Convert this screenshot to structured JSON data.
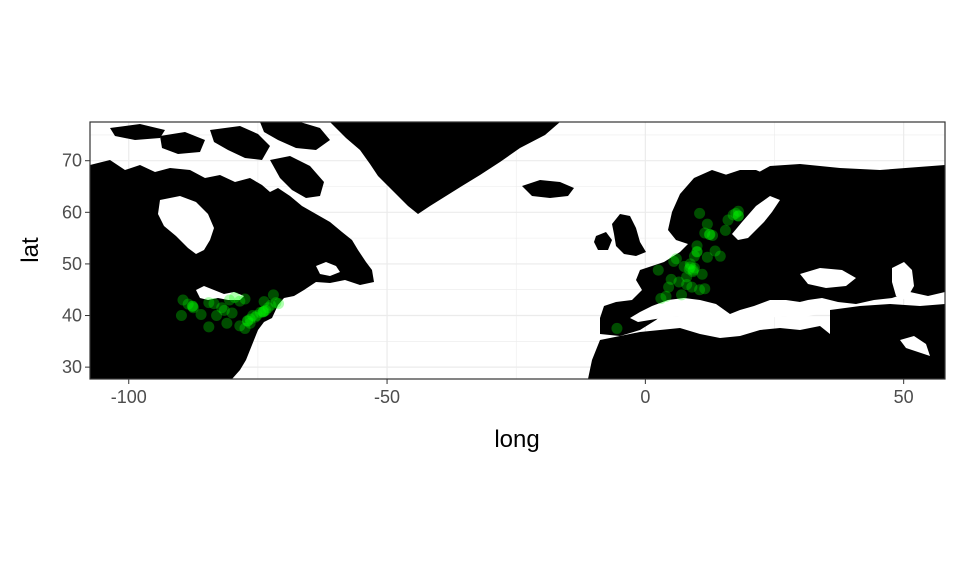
{
  "chart_data": {
    "type": "scatter",
    "title": "",
    "xlabel": "long",
    "ylabel": "lat",
    "xlim": [
      -107.5,
      58
    ],
    "ylim": [
      27.7,
      77.5
    ],
    "x_ticks": [
      -100,
      -50,
      0,
      50
    ],
    "y_ticks": [
      30,
      40,
      50,
      60,
      70
    ],
    "x_tick_labels": [
      "-100",
      "-50",
      "0",
      "50"
    ],
    "y_tick_labels": [
      "30",
      "40",
      "50",
      "60",
      "70"
    ],
    "grid": true,
    "legend": "none",
    "colors": {
      "land": "#000000",
      "water": "#ffffff",
      "point": "#00ff00",
      "grid": "#ebebeb",
      "panel_border": "#333333"
    },
    "points": [
      {
        "x": -89.5,
        "y": 43.0
      },
      {
        "x": -88.5,
        "y": 42.2
      },
      {
        "x": -87.7,
        "y": 41.8
      },
      {
        "x": -87.5,
        "y": 41.5
      },
      {
        "x": -89.8,
        "y": 40.0
      },
      {
        "x": -86.0,
        "y": 40.2
      },
      {
        "x": -84.5,
        "y": 42.5
      },
      {
        "x": -83.5,
        "y": 42.3
      },
      {
        "x": -83.0,
        "y": 40.0
      },
      {
        "x": -82.0,
        "y": 41.5
      },
      {
        "x": -81.5,
        "y": 41.0
      },
      {
        "x": -80.0,
        "y": 40.5
      },
      {
        "x": -80.5,
        "y": 43.0
      },
      {
        "x": -79.5,
        "y": 43.5
      },
      {
        "x": -78.5,
        "y": 42.8
      },
      {
        "x": -77.5,
        "y": 43.2
      },
      {
        "x": -77.0,
        "y": 39.0
      },
      {
        "x": -76.5,
        "y": 39.3
      },
      {
        "x": -76.0,
        "y": 40.0
      },
      {
        "x": -75.2,
        "y": 40.0
      },
      {
        "x": -74.5,
        "y": 40.6
      },
      {
        "x": -74.0,
        "y": 40.7
      },
      {
        "x": -73.8,
        "y": 40.8
      },
      {
        "x": -73.5,
        "y": 41.0
      },
      {
        "x": -73.0,
        "y": 41.5
      },
      {
        "x": -72.5,
        "y": 42.0
      },
      {
        "x": -71.5,
        "y": 42.5
      },
      {
        "x": -71.0,
        "y": 42.3
      },
      {
        "x": -73.8,
        "y": 42.7
      },
      {
        "x": -72.0,
        "y": 44.0
      },
      {
        "x": -77.5,
        "y": 37.5
      },
      {
        "x": -78.5,
        "y": 38.0
      },
      {
        "x": -84.5,
        "y": 37.8
      },
      {
        "x": -81.0,
        "y": 38.5
      },
      {
        "x": -75.5,
        "y": 39.7
      },
      {
        "x": -76.5,
        "y": 38.5
      },
      {
        "x": -5.5,
        "y": 37.5
      },
      {
        "x": 2.5,
        "y": 48.8
      },
      {
        "x": 3.0,
        "y": 43.3
      },
      {
        "x": 4.0,
        "y": 43.7
      },
      {
        "x": 4.5,
        "y": 45.5
      },
      {
        "x": 5.0,
        "y": 47.0
      },
      {
        "x": 5.5,
        "y": 50.5
      },
      {
        "x": 6.0,
        "y": 51.0
      },
      {
        "x": 6.5,
        "y": 46.5
      },
      {
        "x": 7.0,
        "y": 44.0
      },
      {
        "x": 7.5,
        "y": 49.5
      },
      {
        "x": 8.0,
        "y": 47.5
      },
      {
        "x": 8.5,
        "y": 49.0
      },
      {
        "x": 8.7,
        "y": 50.0
      },
      {
        "x": 9.0,
        "y": 45.5
      },
      {
        "x": 9.2,
        "y": 48.5
      },
      {
        "x": 9.5,
        "y": 51.5
      },
      {
        "x": 10.0,
        "y": 52.3
      },
      {
        "x": 10.0,
        "y": 53.5
      },
      {
        "x": 10.5,
        "y": 45.0
      },
      {
        "x": 11.0,
        "y": 48.0
      },
      {
        "x": 11.5,
        "y": 56.0
      },
      {
        "x": 10.5,
        "y": 59.8
      },
      {
        "x": 12.0,
        "y": 57.7
      },
      {
        "x": 12.5,
        "y": 55.7
      },
      {
        "x": 13.0,
        "y": 55.5
      },
      {
        "x": 13.5,
        "y": 52.5
      },
      {
        "x": 14.5,
        "y": 51.5
      },
      {
        "x": 15.5,
        "y": 56.5
      },
      {
        "x": 16.0,
        "y": 58.5
      },
      {
        "x": 17.0,
        "y": 59.5
      },
      {
        "x": 17.5,
        "y": 59.8
      },
      {
        "x": 18.0,
        "y": 59.3
      },
      {
        "x": 18.0,
        "y": 60.2
      },
      {
        "x": 8.0,
        "y": 46.0
      },
      {
        "x": 9.5,
        "y": 49.2
      },
      {
        "x": 11.5,
        "y": 45.2
      },
      {
        "x": 12.0,
        "y": 51.3
      }
    ],
    "dense_points": [
      {
        "x": -87.6,
        "y": 41.8
      },
      {
        "x": -74.0,
        "y": 40.7
      },
      {
        "x": -77.0,
        "y": 38.9
      },
      {
        "x": 10.0,
        "y": 52.4
      },
      {
        "x": 8.7,
        "y": 49.4
      },
      {
        "x": 18.0,
        "y": 59.3
      },
      {
        "x": 9.3,
        "y": 48.8
      },
      {
        "x": 12.4,
        "y": 55.7
      }
    ]
  }
}
